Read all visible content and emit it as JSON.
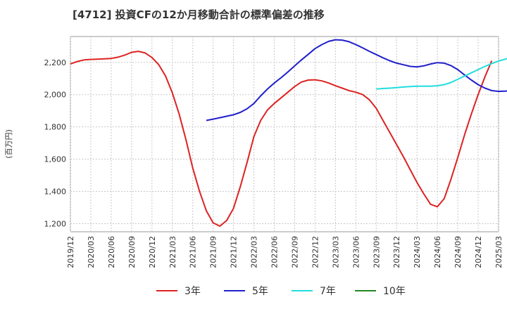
{
  "chart_data": {
    "type": "line",
    "title": "[4712]  投資CFの12か月移動合計の標準偏差の推移",
    "ylabel": "(百万円)",
    "xlabel": "",
    "ylim": [
      1150,
      2360
    ],
    "yticks": [
      1200,
      1400,
      1600,
      1800,
      2000,
      2200
    ],
    "ytick_labels": [
      "1,200",
      "1,400",
      "1,600",
      "1,800",
      "2,000",
      "2,200"
    ],
    "xticks": [
      "2019/12",
      "2020/03",
      "2020/06",
      "2020/09",
      "2020/12",
      "2021/03",
      "2021/06",
      "2021/09",
      "2021/12",
      "2022/03",
      "2022/06",
      "2022/09",
      "2022/12",
      "2023/03",
      "2023/06",
      "2023/09",
      "2023/12",
      "2024/03",
      "2024/06",
      "2024/09",
      "2024/12",
      "2025/03"
    ],
    "grid": true,
    "legend_position": "bottom",
    "series": [
      {
        "name": "3年",
        "color": "#dd2222",
        "start": "2019/12",
        "values": [
          2190,
          2205,
          2215,
          2218,
          2220,
          2222,
          2224,
          2232,
          2245,
          2262,
          2268,
          2258,
          2230,
          2185,
          2115,
          2010,
          1880,
          1720,
          1545,
          1400,
          1280,
          1205,
          1185,
          1220,
          1295,
          1430,
          1580,
          1740,
          1840,
          1905,
          1945,
          1980,
          2015,
          2050,
          2078,
          2090,
          2092,
          2085,
          2072,
          2055,
          2040,
          2025,
          2015,
          2000,
          1968,
          1915,
          1840,
          1765,
          1690,
          1615,
          1535,
          1455,
          1385,
          1320,
          1305,
          1355,
          1475,
          1610,
          1750,
          1880,
          2000,
          2110,
          2210
        ]
      },
      {
        "name": "5年",
        "color": "#1f1fcc",
        "start": "2021/08",
        "values": [
          1840,
          1848,
          1857,
          1866,
          1875,
          1890,
          1912,
          1945,
          1992,
          2035,
          2072,
          2105,
          2140,
          2178,
          2215,
          2250,
          2285,
          2310,
          2330,
          2340,
          2338,
          2328,
          2310,
          2290,
          2268,
          2248,
          2228,
          2210,
          2195,
          2185,
          2175,
          2172,
          2178,
          2190,
          2198,
          2195,
          2180,
          2155,
          2122,
          2090,
          2062,
          2040,
          2025,
          2020,
          2022,
          2025,
          2032,
          2042,
          2055
        ]
      },
      {
        "name": "7年",
        "color": "#22dddd",
        "start": "2023/09",
        "values": [
          2035,
          2038,
          2040,
          2043,
          2047,
          2050,
          2052,
          2052,
          2052,
          2055,
          2062,
          2075,
          2095,
          2115,
          2135,
          2155,
          2175,
          2192,
          2208,
          2220,
          2232
        ]
      },
      {
        "name": "10年",
        "color": "#228822",
        "start": "2019/12",
        "values": []
      }
    ]
  }
}
